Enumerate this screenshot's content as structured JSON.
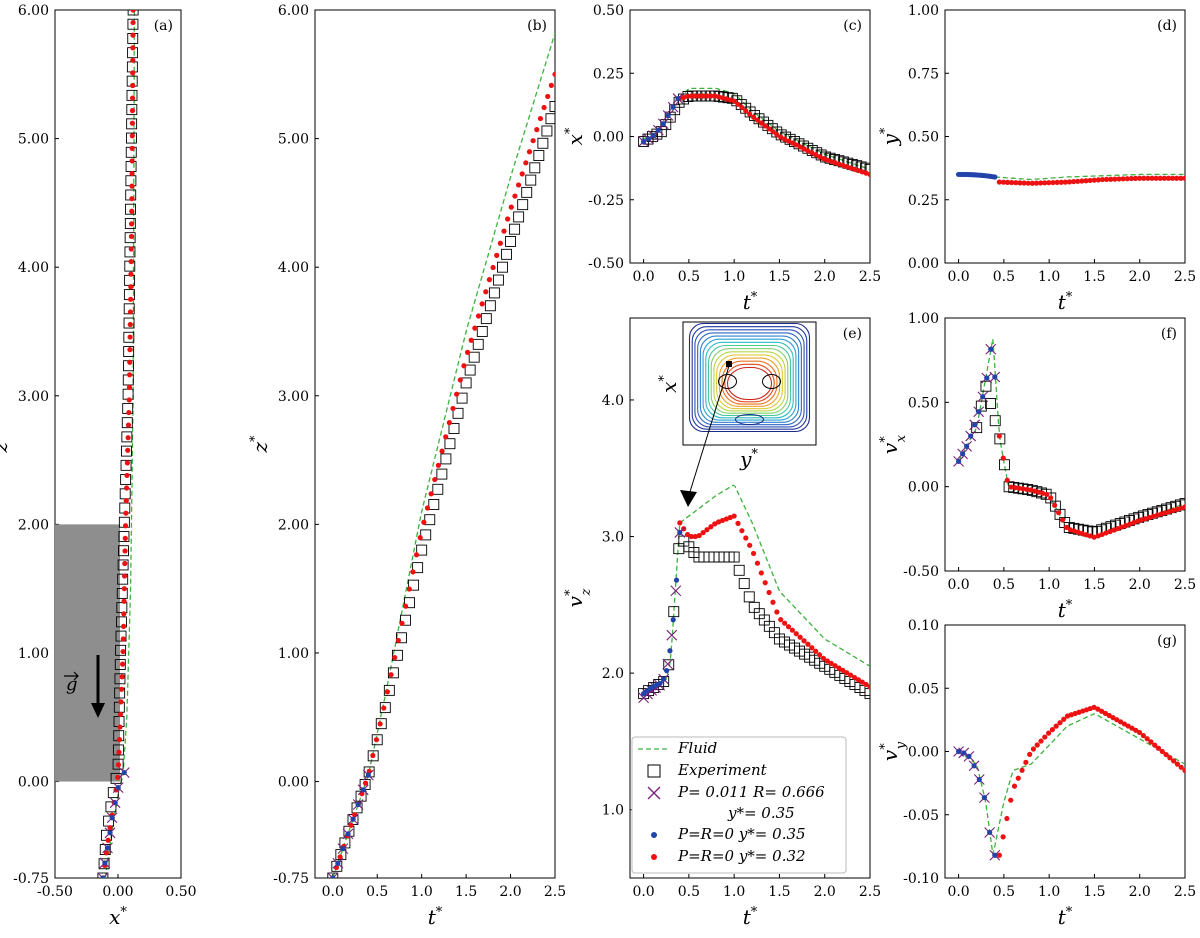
{
  "chart_data": [
    {
      "id": "a",
      "type": "scatter",
      "panel_label": "(a)",
      "xlabel": "x",
      "ylabel": "z",
      "xlim": [
        -0.5,
        0.5
      ],
      "ylim": [
        -0.75,
        6.0
      ],
      "xticks": [
        "-0.50",
        "0.00",
        "0.50"
      ],
      "yticks": [
        "-0.75",
        "0.00",
        "1.00",
        "2.00",
        "3.00",
        "4.00",
        "5.00",
        "6.00"
      ],
      "annotation": "g (gravity vector, pointing down)",
      "series": [
        {
          "name": "Fluid",
          "x": [
            -0.1,
            -0.05,
            0.0,
            0.04,
            0.07,
            0.1,
            0.12,
            0.13
          ],
          "y": [
            -0.75,
            -0.4,
            -0.1,
            0.05,
            0.5,
            1.5,
            3.0,
            6.0
          ]
        },
        {
          "name": "Experiment",
          "x": [
            -0.12,
            -0.09,
            -0.04,
            0.0,
            0.02,
            0.05,
            0.08,
            0.1,
            0.12
          ],
          "y": [
            -0.75,
            -0.4,
            -0.1,
            0.1,
            1.0,
            2.0,
            3.0,
            4.5,
            6.0
          ]
        },
        {
          "name": "P=R=0 y*=0.32",
          "x": [
            -0.12,
            -0.07,
            -0.02,
            0.0,
            0.04,
            0.06,
            0.09,
            0.11,
            0.12
          ],
          "y": [
            -0.75,
            -0.4,
            -0.1,
            0.05,
            1.0,
            2.0,
            3.0,
            4.5,
            6.0
          ]
        },
        {
          "name": "P=0.011 R=0.666 y*=0.35",
          "x": [
            -0.12,
            -0.1,
            -0.07,
            -0.05,
            -0.02,
            0.0,
            0.03,
            0.05
          ],
          "y": [
            -0.75,
            -0.6,
            -0.45,
            -0.3,
            -0.15,
            -0.05,
            0.0,
            0.07
          ]
        },
        {
          "name": "P=R=0 y*=0.35",
          "x": [
            -0.12,
            -0.1,
            -0.07,
            -0.05,
            -0.02,
            0.0,
            0.03,
            0.05
          ],
          "y": [
            -0.75,
            -0.6,
            -0.45,
            -0.3,
            -0.15,
            -0.05,
            0.0,
            0.07
          ]
        }
      ]
    },
    {
      "id": "b",
      "type": "scatter",
      "panel_label": "(b)",
      "xlabel": "t",
      "ylabel": "z",
      "xlim": [
        -0.2,
        2.5
      ],
      "ylim": [
        -0.75,
        6.0
      ],
      "xticks": [
        "0.0",
        "0.5",
        "1.0",
        "1.5",
        "2.0",
        "2.5"
      ],
      "yticks": [
        "-0.75",
        "0.00",
        "1.00",
        "2.00",
        "3.00",
        "4.00",
        "5.00",
        "6.00"
      ],
      "series": [
        {
          "name": "Fluid",
          "x": [
            0.0,
            0.4,
            0.6,
            1.0,
            1.5,
            2.0,
            2.5
          ],
          "y": [
            -0.75,
            0.05,
            0.7,
            2.1,
            3.5,
            4.7,
            5.82
          ]
        },
        {
          "name": "Experiment",
          "x": [
            0.0,
            0.4,
            0.6,
            1.0,
            1.5,
            2.0,
            2.5
          ],
          "y": [
            -0.75,
            0.05,
            0.6,
            1.8,
            3.1,
            4.2,
            5.25
          ]
        },
        {
          "name": "P=R=0 y*=0.32",
          "x": [
            0.0,
            0.4,
            0.6,
            1.0,
            1.5,
            2.0,
            2.5
          ],
          "y": [
            -0.75,
            0.05,
            0.65,
            1.95,
            3.3,
            4.45,
            5.5
          ]
        },
        {
          "name": "P=0.011 R=0.666 y*=0.35",
          "x": [
            0.0,
            0.1,
            0.2,
            0.3,
            0.4
          ],
          "y": [
            -0.75,
            -0.55,
            -0.35,
            -0.15,
            0.05
          ]
        },
        {
          "name": "P=R=0 y*=0.35",
          "x": [
            0.0,
            0.1,
            0.2,
            0.3,
            0.4
          ],
          "y": [
            -0.75,
            -0.55,
            -0.35,
            -0.15,
            0.05
          ]
        }
      ]
    },
    {
      "id": "c",
      "type": "scatter",
      "panel_label": "(c)",
      "xlabel": "t",
      "ylabel": "x",
      "xlim": [
        -0.15,
        2.5
      ],
      "ylim": [
        -0.5,
        0.5
      ],
      "xticks": [
        "0.0",
        "0.5",
        "1.0",
        "1.5",
        "2.0",
        "2.5"
      ],
      "yticks": [
        "-0.50",
        "-0.25",
        "0.00",
        "0.25",
        "0.50"
      ],
      "series": [
        {
          "name": "Fluid",
          "x": [
            0.0,
            0.2,
            0.4,
            0.5,
            0.8,
            1.0,
            1.2,
            1.5,
            2.0,
            2.5
          ],
          "y": [
            -0.01,
            0.03,
            0.15,
            0.19,
            0.19,
            0.17,
            0.1,
            0.02,
            -0.07,
            -0.13
          ]
        },
        {
          "name": "Experiment",
          "x": [
            0.0,
            0.2,
            0.4,
            0.5,
            0.8,
            1.0,
            1.2,
            1.5,
            2.0,
            2.5
          ],
          "y": [
            -0.02,
            0.02,
            0.14,
            0.16,
            0.16,
            0.15,
            0.09,
            0.01,
            -0.08,
            -0.13
          ]
        },
        {
          "name": "P=R=0 y*=0.32",
          "x": [
            0.4,
            0.5,
            0.8,
            1.0,
            1.2,
            1.5,
            2.0,
            2.5
          ],
          "y": [
            0.15,
            0.16,
            0.16,
            0.14,
            0.08,
            0.0,
            -0.09,
            -0.15
          ]
        },
        {
          "name": "P=0.011 R=0.666 y*=0.35",
          "x": [
            0.0,
            0.1,
            0.2,
            0.3,
            0.38
          ],
          "y": [
            -0.02,
            0.0,
            0.04,
            0.1,
            0.15
          ]
        },
        {
          "name": "P=R=0 y*=0.35",
          "x": [
            0.0,
            0.1,
            0.2,
            0.3,
            0.38
          ],
          "y": [
            -0.02,
            0.0,
            0.04,
            0.1,
            0.15
          ]
        }
      ]
    },
    {
      "id": "d",
      "type": "scatter",
      "panel_label": "(d)",
      "xlabel": "t",
      "ylabel": "y",
      "xlim": [
        -0.15,
        2.5
      ],
      "ylim": [
        0.0,
        1.0
      ],
      "xticks": [
        "0.0",
        "0.5",
        "1.0",
        "1.5",
        "2.0",
        "2.5"
      ],
      "yticks": [
        "0.00",
        "0.25",
        "0.50",
        "0.75",
        "1.00"
      ],
      "series": [
        {
          "name": "Fluid",
          "x": [
            0.4,
            0.8,
            1.2,
            1.6,
            2.0,
            2.5
          ],
          "y": [
            0.34,
            0.33,
            0.34,
            0.345,
            0.35,
            0.35
          ]
        },
        {
          "name": "P=R=0 y*=0.32",
          "x": [
            0.45,
            0.8,
            1.2,
            1.6,
            2.0,
            2.5
          ],
          "y": [
            0.32,
            0.315,
            0.32,
            0.33,
            0.335,
            0.335
          ]
        },
        {
          "name": "P=R=0 y*=0.35",
          "x": [
            0.0,
            0.1,
            0.2,
            0.3,
            0.4
          ],
          "y": [
            0.35,
            0.35,
            0.348,
            0.345,
            0.34
          ]
        }
      ]
    },
    {
      "id": "e",
      "type": "scatter",
      "panel_label": "(e)",
      "xlabel": "t",
      "ylabel": "v_z",
      "xlim": [
        -0.15,
        2.5
      ],
      "ylim": [
        0.5,
        4.6
      ],
      "xticks": [
        "0.0",
        "0.5",
        "1.0",
        "1.5",
        "2.0",
        "2.5"
      ],
      "yticks": [
        "1.0",
        "2.0",
        "3.0",
        "4.0"
      ],
      "inset": {
        "description": "velocity contour map of channel cross-section",
        "xlabel": "y",
        "ylabel": "x"
      },
      "series": [
        {
          "name": "Fluid",
          "x": [
            0.0,
            0.25,
            0.3,
            0.35,
            0.4,
            0.6,
            0.8,
            1.0,
            1.2,
            1.5,
            2.0,
            2.5
          ],
          "y": [
            1.85,
            1.95,
            2.1,
            2.6,
            3.1,
            3.2,
            3.3,
            3.38,
            3.1,
            2.6,
            2.25,
            2.05
          ]
        },
        {
          "name": "Experiment",
          "x": [
            0.0,
            0.25,
            0.3,
            0.35,
            0.4,
            0.6,
            0.8,
            1.0,
            1.2,
            1.5,
            2.0,
            2.5
          ],
          "y": [
            1.85,
            1.95,
            2.15,
            2.6,
            3.0,
            2.85,
            2.85,
            2.85,
            2.5,
            2.25,
            2.05,
            1.85
          ]
        },
        {
          "name": "P=R=0 y*=0.32",
          "x": [
            0.4,
            0.5,
            0.6,
            0.8,
            1.0,
            1.2,
            1.5,
            2.0,
            2.5
          ],
          "y": [
            3.1,
            3.0,
            3.0,
            3.1,
            3.15,
            2.9,
            2.4,
            2.1,
            1.9
          ]
        },
        {
          "name": "P=0.011 R=0.666 y*=0.35",
          "x": [
            0.0,
            0.1,
            0.2,
            0.25,
            0.3,
            0.35,
            0.4
          ],
          "y": [
            1.82,
            1.88,
            1.92,
            2.0,
            2.2,
            2.55,
            3.03
          ]
        },
        {
          "name": "P=R=0 y*=0.35",
          "x": [
            0.0,
            0.1,
            0.2,
            0.25,
            0.3,
            0.35,
            0.4
          ],
          "y": [
            1.85,
            1.9,
            1.93,
            2.0,
            2.2,
            2.55,
            3.03
          ]
        }
      ]
    },
    {
      "id": "f",
      "type": "scatter",
      "panel_label": "(f)",
      "xlabel": "t",
      "ylabel": "v_x",
      "xlim": [
        -0.15,
        2.5
      ],
      "ylim": [
        -0.5,
        1.0
      ],
      "xticks": [
        "0.0",
        "0.5",
        "1.0",
        "1.5",
        "2.0",
        "2.5"
      ],
      "yticks": [
        "-0.50",
        "0.00",
        "0.50",
        "1.00"
      ],
      "series": [
        {
          "name": "Fluid",
          "x": [
            0.0,
            0.2,
            0.38,
            0.45,
            0.55,
            0.8,
            1.0,
            1.2,
            1.5,
            2.0,
            2.5
          ],
          "y": [
            0.15,
            0.35,
            0.88,
            0.3,
            0.0,
            -0.02,
            -0.05,
            -0.25,
            -0.3,
            -0.2,
            -0.1
          ]
        },
        {
          "name": "Experiment",
          "x": [
            0.2,
            0.3,
            0.35,
            0.45,
            0.55,
            0.8,
            1.0,
            1.2,
            1.5,
            2.0,
            2.5
          ],
          "y": [
            0.35,
            0.6,
            0.5,
            0.3,
            0.0,
            -0.02,
            -0.05,
            -0.24,
            -0.27,
            -0.18,
            -0.1
          ]
        },
        {
          "name": "P=R=0 y*=0.32",
          "x": [
            0.45,
            0.55,
            0.8,
            1.0,
            1.2,
            1.5,
            2.0,
            2.5
          ],
          "y": [
            0.3,
            0.0,
            -0.02,
            -0.05,
            -0.25,
            -0.3,
            -0.2,
            -0.12
          ]
        },
        {
          "name": "P=0.011 R=0.666 y*=0.35",
          "x": [
            0.0,
            0.1,
            0.2,
            0.3,
            0.35,
            0.38,
            0.4
          ],
          "y": [
            0.15,
            0.25,
            0.4,
            0.6,
            0.8,
            0.88,
            0.65
          ]
        },
        {
          "name": "P=R=0 y*=0.35",
          "x": [
            0.0,
            0.1,
            0.2,
            0.3,
            0.35,
            0.38,
            0.4
          ],
          "y": [
            0.15,
            0.25,
            0.4,
            0.6,
            0.8,
            0.88,
            0.65
          ]
        }
      ]
    },
    {
      "id": "g",
      "type": "scatter",
      "panel_label": "(g)",
      "xlabel": "t",
      "ylabel": "v_y",
      "xlim": [
        -0.15,
        2.5
      ],
      "ylim": [
        -0.1,
        0.1
      ],
      "xticks": [
        "0.0",
        "0.5",
        "1.0",
        "1.5",
        "2.0",
        "2.5"
      ],
      "yticks": [
        "-0.10",
        "-0.05",
        "0.00",
        "0.05",
        "0.10"
      ],
      "series": [
        {
          "name": "Fluid",
          "x": [
            0.0,
            0.2,
            0.3,
            0.38,
            0.5,
            0.6,
            0.8,
            1.0,
            1.2,
            1.5,
            2.0,
            2.5
          ],
          "y": [
            0.0,
            -0.01,
            -0.04,
            -0.082,
            -0.04,
            -0.015,
            -0.01,
            0.005,
            0.02,
            0.03,
            0.01,
            -0.01
          ]
        },
        {
          "name": "P=R=0 y*=0.32",
          "x": [
            0.45,
            0.6,
            0.8,
            1.0,
            1.2,
            1.5,
            2.0,
            2.5
          ],
          "y": [
            -0.082,
            -0.03,
            0.0,
            0.015,
            0.028,
            0.035,
            0.015,
            -0.015
          ]
        },
        {
          "name": "P=0.011 R=0.666 y*=0.35",
          "x": [
            0.0,
            0.1,
            0.2,
            0.3,
            0.35,
            0.4
          ],
          "y": [
            0.0,
            -0.002,
            -0.015,
            -0.04,
            -0.068,
            -0.082
          ]
        },
        {
          "name": "P=R=0 y*=0.35",
          "x": [
            0.0,
            0.1,
            0.2,
            0.3,
            0.35,
            0.4
          ],
          "y": [
            0.0,
            -0.002,
            -0.015,
            -0.04,
            -0.068,
            -0.082
          ]
        }
      ]
    }
  ],
  "legend": {
    "items": [
      {
        "label": "Fluid",
        "marker": "dashed-line"
      },
      {
        "label": "Experiment",
        "marker": "open-square"
      },
      {
        "label": "P= 0.011  R= 0.666",
        "label2": "y*= 0.35",
        "marker": "x"
      },
      {
        "label": "P=R=0  y*= 0.35",
        "marker": "blue-dot"
      },
      {
        "label": "P=R=0  y*= 0.32",
        "marker": "red-dot"
      }
    ]
  },
  "colors": {
    "fluid": "#3cb33c",
    "experiment": "#000000",
    "cross": "#7a1f7a",
    "blue": "#2244aa",
    "red": "#ee1111",
    "gray_box": "#8e8e8e"
  }
}
